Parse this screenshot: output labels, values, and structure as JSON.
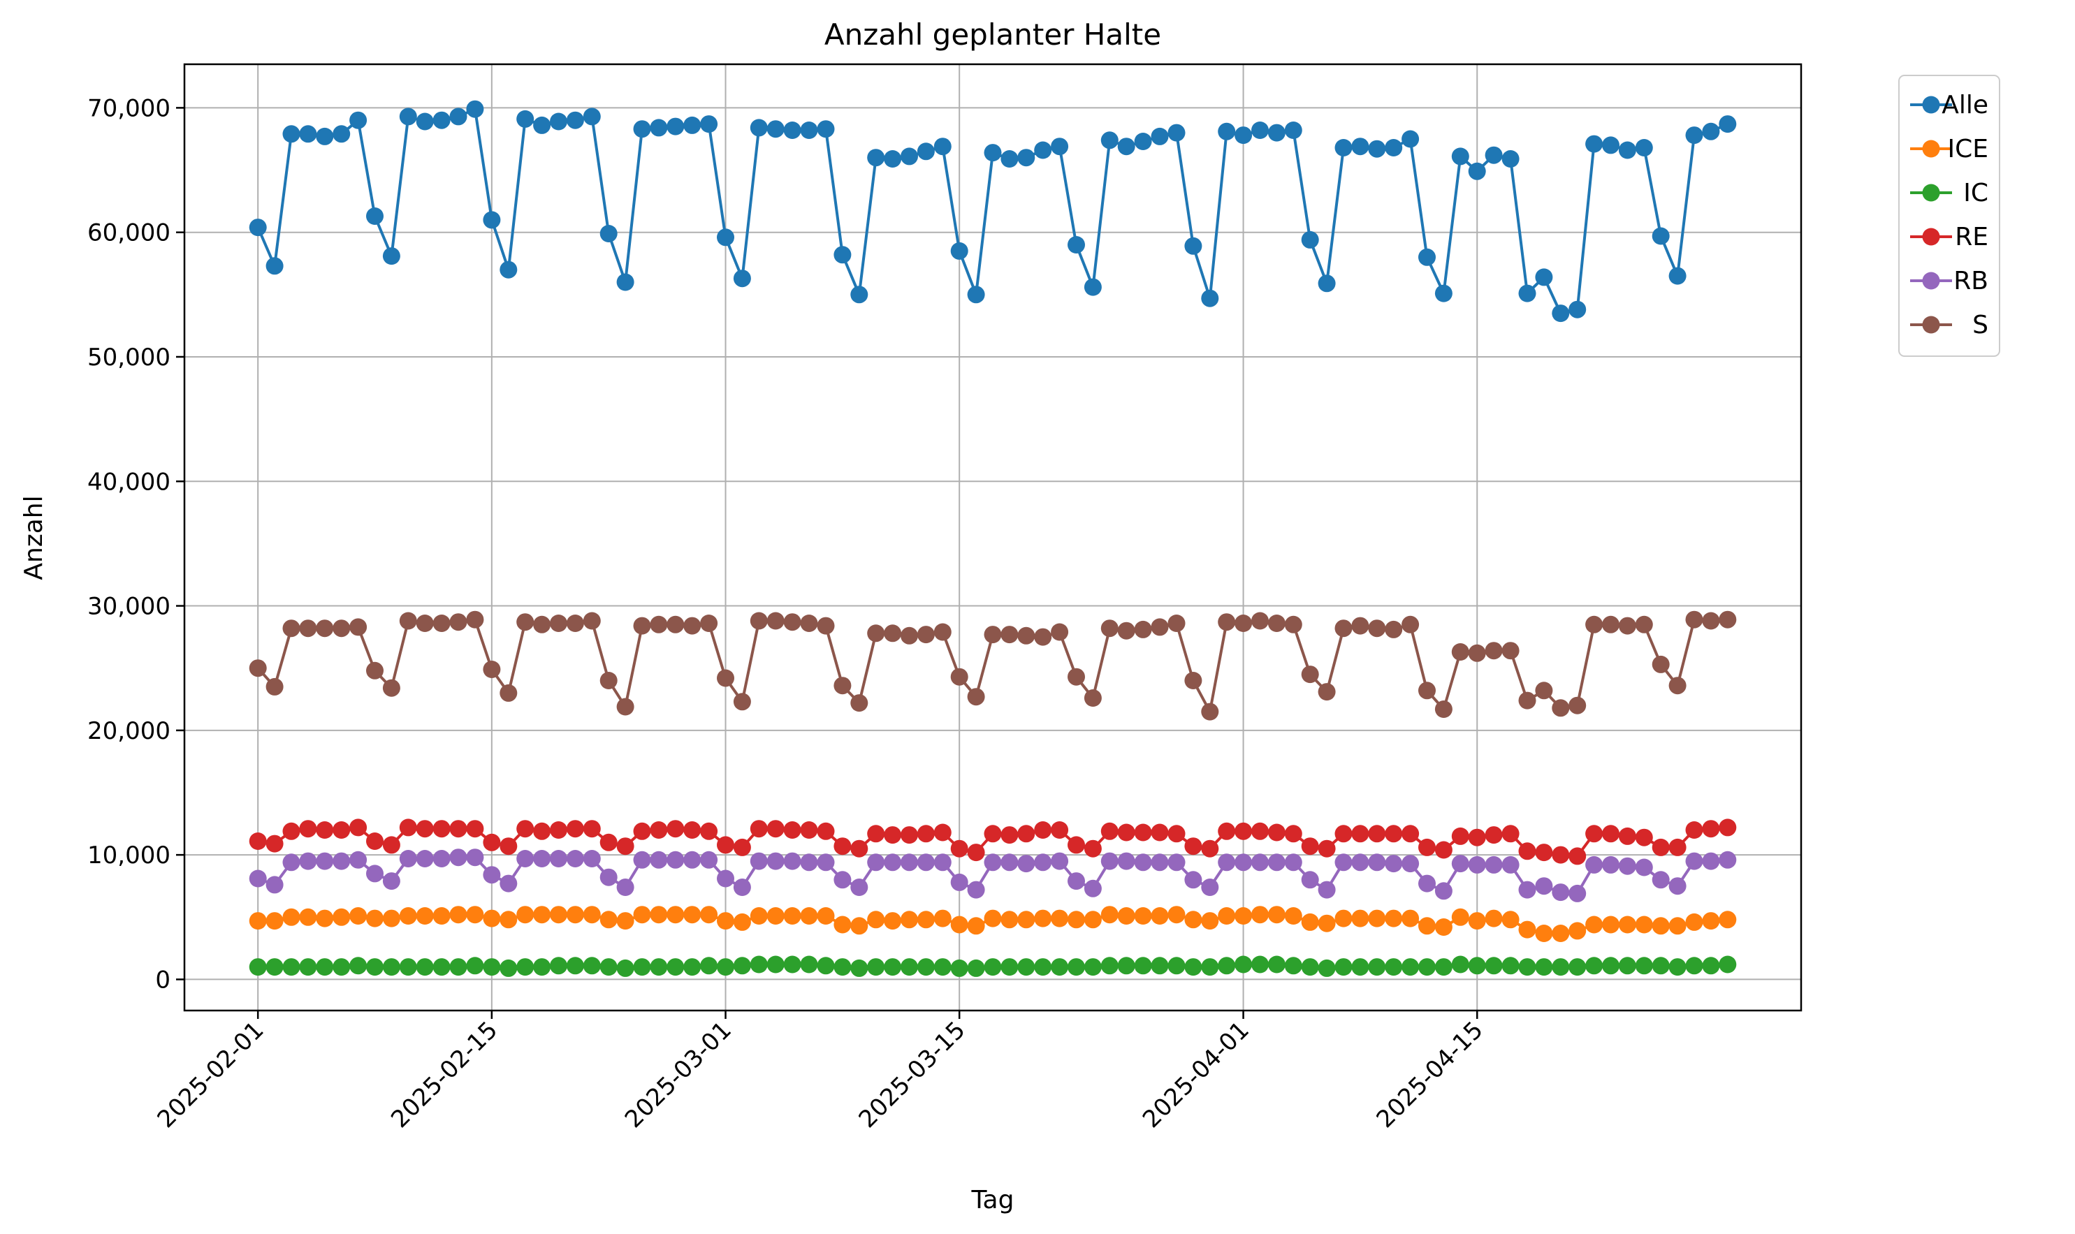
{
  "chart_data": {
    "type": "line",
    "title": "Anzahl geplanter Halte",
    "xlabel": "Tag",
    "ylabel": "Anzahl",
    "x_start": "2025-02-01",
    "num_days": 88,
    "xlim": [
      -4.4,
      92.4
    ],
    "ylim": [
      -2500,
      73500
    ],
    "grid": true,
    "marker": "circle",
    "legend_position": "outside-top-right",
    "x_ticks": [
      {
        "day": 0,
        "label": "2025-02-01"
      },
      {
        "day": 14,
        "label": "2025-02-15"
      },
      {
        "day": 28,
        "label": "2025-03-01"
      },
      {
        "day": 42,
        "label": "2025-03-15"
      },
      {
        "day": 59,
        "label": "2025-04-01"
      },
      {
        "day": 73,
        "label": "2025-04-15"
      }
    ],
    "y_ticks": [
      {
        "value": 0,
        "label": "0"
      },
      {
        "value": 10000,
        "label": "10,000"
      },
      {
        "value": 20000,
        "label": "20,000"
      },
      {
        "value": 30000,
        "label": "30,000"
      },
      {
        "value": 40000,
        "label": "40,000"
      },
      {
        "value": 50000,
        "label": "50,000"
      },
      {
        "value": 60000,
        "label": "60,000"
      },
      {
        "value": 70000,
        "label": "70,000"
      }
    ],
    "series": [
      {
        "name": "Alle",
        "color": "#1f77b4",
        "values": [
          60400,
          57300,
          67900,
          67900,
          67700,
          67900,
          69000,
          61300,
          58100,
          69300,
          68900,
          69000,
          69300,
          69900,
          61000,
          57000,
          69100,
          68600,
          68900,
          69000,
          69300,
          59900,
          56000,
          68300,
          68400,
          68500,
          68600,
          68700,
          59600,
          56300,
          68400,
          68300,
          68200,
          68200,
          68300,
          58200,
          55000,
          66000,
          65900,
          66100,
          66500,
          66900,
          58500,
          55000,
          66400,
          65900,
          66000,
          66600,
          66900,
          59000,
          55600,
          67400,
          66900,
          67300,
          67700,
          68000,
          58900,
          54700,
          68100,
          67800,
          68200,
          68000,
          68200,
          59400,
          55900,
          66800,
          66900,
          66700,
          66800,
          67500,
          58000,
          55100,
          66100,
          64900,
          66200,
          65900,
          55100,
          56400,
          53500,
          53800,
          67100,
          67000,
          66600,
          66800,
          59700,
          56500,
          67800,
          68100,
          68700
        ]
      },
      {
        "name": "ICE",
        "color": "#ff7f0e",
        "values": [
          4700,
          4700,
          5000,
          5000,
          4900,
          5000,
          5100,
          4900,
          4900,
          5100,
          5100,
          5100,
          5200,
          5200,
          4900,
          4800,
          5200,
          5200,
          5200,
          5200,
          5200,
          4800,
          4700,
          5200,
          5200,
          5200,
          5200,
          5200,
          4700,
          4600,
          5100,
          5100,
          5100,
          5100,
          5100,
          4400,
          4300,
          4800,
          4700,
          4800,
          4800,
          4900,
          4400,
          4300,
          4900,
          4800,
          4800,
          4900,
          4900,
          4800,
          4800,
          5200,
          5100,
          5100,
          5100,
          5200,
          4800,
          4700,
          5100,
          5100,
          5200,
          5200,
          5100,
          4600,
          4500,
          4900,
          4900,
          4900,
          4900,
          4900,
          4300,
          4200,
          5000,
          4700,
          4900,
          4800,
          4000,
          3700,
          3700,
          3900,
          4400,
          4400,
          4400,
          4400,
          4300,
          4300,
          4600,
          4700,
          4800
        ]
      },
      {
        "name": "IC",
        "color": "#2ca02c",
        "values": [
          1000,
          1000,
          1000,
          1000,
          1000,
          1000,
          1100,
          1000,
          1000,
          1000,
          1000,
          1000,
          1000,
          1100,
          1000,
          900,
          1000,
          1000,
          1100,
          1100,
          1100,
          1000,
          900,
          1000,
          1000,
          1000,
          1000,
          1100,
          1000,
          1100,
          1200,
          1200,
          1200,
          1200,
          1100,
          1000,
          900,
          1000,
          1000,
          1000,
          1000,
          1000,
          900,
          900,
          1000,
          1000,
          1000,
          1000,
          1000,
          1000,
          1000,
          1100,
          1100,
          1100,
          1100,
          1100,
          1000,
          1000,
          1100,
          1200,
          1200,
          1200,
          1100,
          1000,
          900,
          1000,
          1000,
          1000,
          1000,
          1000,
          1000,
          1000,
          1200,
          1100,
          1100,
          1100,
          1000,
          1000,
          1000,
          1000,
          1100,
          1100,
          1100,
          1100,
          1100,
          1000,
          1100,
          1100,
          1200
        ]
      },
      {
        "name": "RE",
        "color": "#d62728",
        "values": [
          11100,
          10900,
          11900,
          12100,
          12000,
          12000,
          12200,
          11100,
          10800,
          12200,
          12100,
          12100,
          12100,
          12100,
          11000,
          10700,
          12100,
          11900,
          12000,
          12100,
          12100,
          11000,
          10700,
          11900,
          12000,
          12100,
          12000,
          11900,
          10800,
          10600,
          12100,
          12100,
          12000,
          12000,
          11900,
          10700,
          10500,
          11700,
          11600,
          11600,
          11700,
          11800,
          10500,
          10200,
          11700,
          11600,
          11700,
          12000,
          12000,
          10800,
          10500,
          11900,
          11800,
          11800,
          11800,
          11700,
          10700,
          10500,
          11900,
          11900,
          11900,
          11800,
          11700,
          10700,
          10500,
          11700,
          11700,
          11700,
          11700,
          11700,
          10600,
          10400,
          11500,
          11400,
          11600,
          11700,
          10300,
          10200,
          10000,
          9900,
          11700,
          11700,
          11500,
          11400,
          10600,
          10600,
          12000,
          12100,
          12200
        ]
      },
      {
        "name": "RB",
        "color": "#9467bd",
        "values": [
          8100,
          7600,
          9400,
          9500,
          9500,
          9500,
          9600,
          8500,
          7900,
          9700,
          9700,
          9700,
          9800,
          9800,
          8400,
          7700,
          9700,
          9700,
          9700,
          9700,
          9700,
          8200,
          7400,
          9600,
          9600,
          9600,
          9600,
          9600,
          8100,
          7400,
          9500,
          9500,
          9500,
          9400,
          9400,
          8000,
          7400,
          9400,
          9400,
          9400,
          9400,
          9400,
          7800,
          7200,
          9400,
          9400,
          9300,
          9400,
          9500,
          7900,
          7300,
          9500,
          9500,
          9400,
          9400,
          9400,
          8000,
          7400,
          9400,
          9400,
          9400,
          9400,
          9400,
          8000,
          7200,
          9400,
          9400,
          9400,
          9300,
          9300,
          7700,
          7100,
          9300,
          9200,
          9200,
          9200,
          7200,
          7500,
          7000,
          6900,
          9200,
          9200,
          9100,
          9000,
          8000,
          7500,
          9500,
          9500,
          9600
        ]
      },
      {
        "name": "S",
        "color": "#8c564b",
        "values": [
          25000,
          23500,
          28200,
          28200,
          28200,
          28200,
          28300,
          24800,
          23400,
          28800,
          28600,
          28600,
          28700,
          28900,
          24900,
          23000,
          28700,
          28500,
          28600,
          28600,
          28800,
          24000,
          21900,
          28400,
          28500,
          28500,
          28400,
          28600,
          24200,
          22300,
          28800,
          28800,
          28700,
          28600,
          28400,
          23600,
          22200,
          27800,
          27800,
          27600,
          27700,
          27900,
          24300,
          22700,
          27700,
          27700,
          27600,
          27500,
          27900,
          24300,
          22600,
          28200,
          28000,
          28100,
          28300,
          28600,
          24000,
          21500,
          28700,
          28600,
          28800,
          28600,
          28500,
          24500,
          23100,
          28200,
          28400,
          28200,
          28100,
          28500,
          23200,
          21700,
          26300,
          26200,
          26400,
          26400,
          22400,
          23200,
          21800,
          22000,
          28500,
          28500,
          28400,
          28500,
          25300,
          23600,
          28900,
          28800,
          28900
        ]
      }
    ]
  }
}
